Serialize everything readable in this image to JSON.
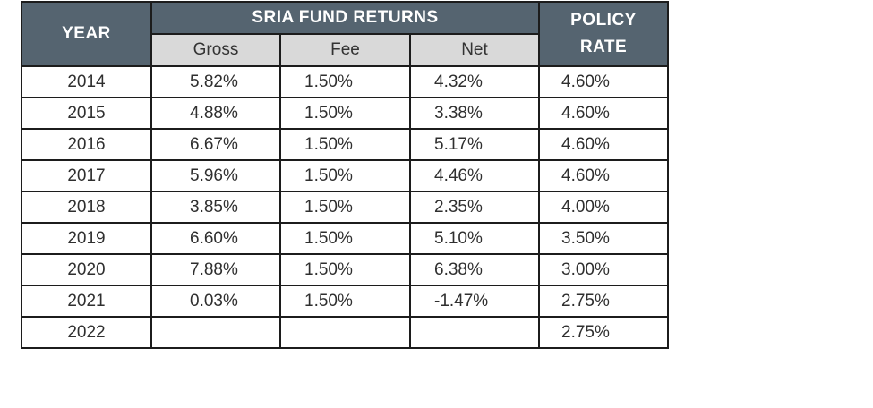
{
  "header": {
    "year": "YEAR",
    "fund": "SRIA FUND RETURNS",
    "policy_line1": "POLICY",
    "policy_line2": "RATE",
    "gross": "Gross",
    "fee": "Fee",
    "net": "Net"
  },
  "rows": [
    {
      "year": "2014",
      "gross": "5.82%",
      "fee": "1.50%",
      "net": "4.32%",
      "rate": "4.60%"
    },
    {
      "year": "2015",
      "gross": "4.88%",
      "fee": "1.50%",
      "net": "3.38%",
      "rate": "4.60%"
    },
    {
      "year": "2016",
      "gross": "6.67%",
      "fee": "1.50%",
      "net": "5.17%",
      "rate": "4.60%"
    },
    {
      "year": "2017",
      "gross": "5.96%",
      "fee": "1.50%",
      "net": "4.46%",
      "rate": "4.60%"
    },
    {
      "year": "2018",
      "gross": "3.85%",
      "fee": "1.50%",
      "net": "2.35%",
      "rate": "4.00%"
    },
    {
      "year": "2019",
      "gross": "6.60%",
      "fee": "1.50%",
      "net": "5.10%",
      "rate": "3.50%"
    },
    {
      "year": "2020",
      "gross": "7.88%",
      "fee": "1.50%",
      "net": "6.38%",
      "rate": "3.00%"
    },
    {
      "year": "2021",
      "gross": "0.03%",
      "fee": "1.50%",
      "net": "-1.47%",
      "rate": "2.75%"
    },
    {
      "year": "2022",
      "gross": "",
      "fee": "",
      "net": "",
      "rate": "2.75%"
    }
  ],
  "colors": {
    "header_bg": "#556470",
    "subheader_bg": "#d9d9d9",
    "border": "#1c1c1c"
  }
}
